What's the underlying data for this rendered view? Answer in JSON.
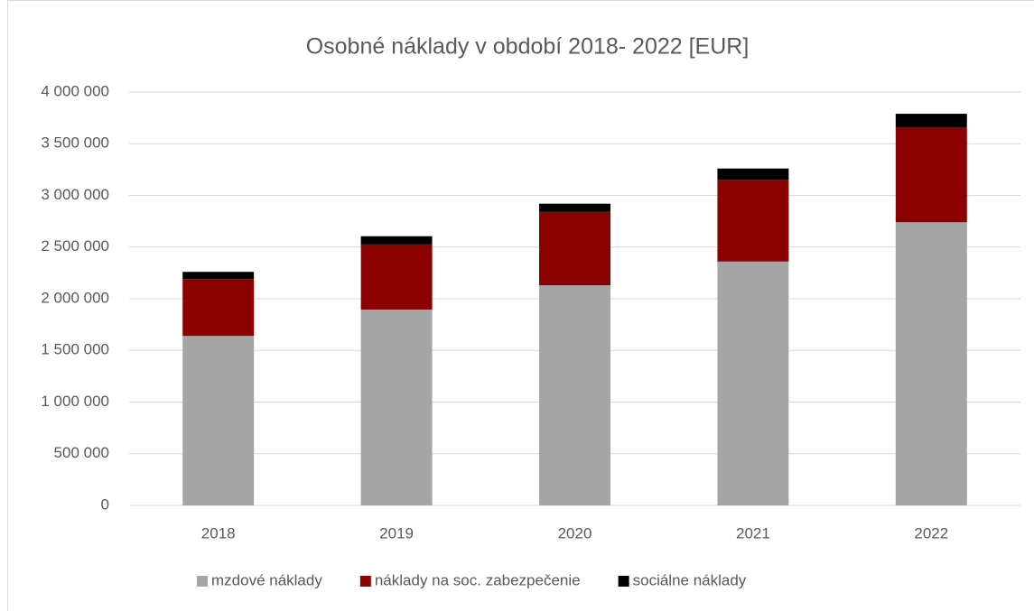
{
  "chart_data": {
    "type": "bar",
    "stacked": true,
    "title": "Osobné náklady v období 2018- 2022 [EUR]",
    "categories": [
      "2018",
      "2019",
      "2020",
      "2021",
      "2022"
    ],
    "series": [
      {
        "name": "mzdové náklady",
        "color": "#a5a5a5",
        "values": [
          1640000,
          1895000,
          2130000,
          2360000,
          2740000
        ]
      },
      {
        "name": "náklady na soc. zabezpečenie",
        "color": "#8b0000",
        "values": [
          550000,
          630000,
          710000,
          790000,
          920000
        ]
      },
      {
        "name": "sociálne náklady",
        "color": "#000000",
        "values": [
          70000,
          80000,
          80000,
          110000,
          130000
        ]
      }
    ],
    "ylim": [
      0,
      4000000
    ],
    "yticks": [
      0,
      {
        "value": 500000,
        "label": "500 000"
      },
      {
        "value": 1000000,
        "label": "1 000 000"
      },
      {
        "value": 1500000,
        "label": "1 500 000"
      },
      {
        "value": 2000000,
        "label": "2 000 000"
      },
      {
        "value": 2500000,
        "label": "2 500 000"
      },
      {
        "value": 3000000,
        "label": "3 000 000"
      },
      {
        "value": 3500000,
        "label": "3 500 000"
      },
      {
        "value": 4000000,
        "label": "4 000 000"
      }
    ],
    "grid": true,
    "legend": "bottom"
  }
}
